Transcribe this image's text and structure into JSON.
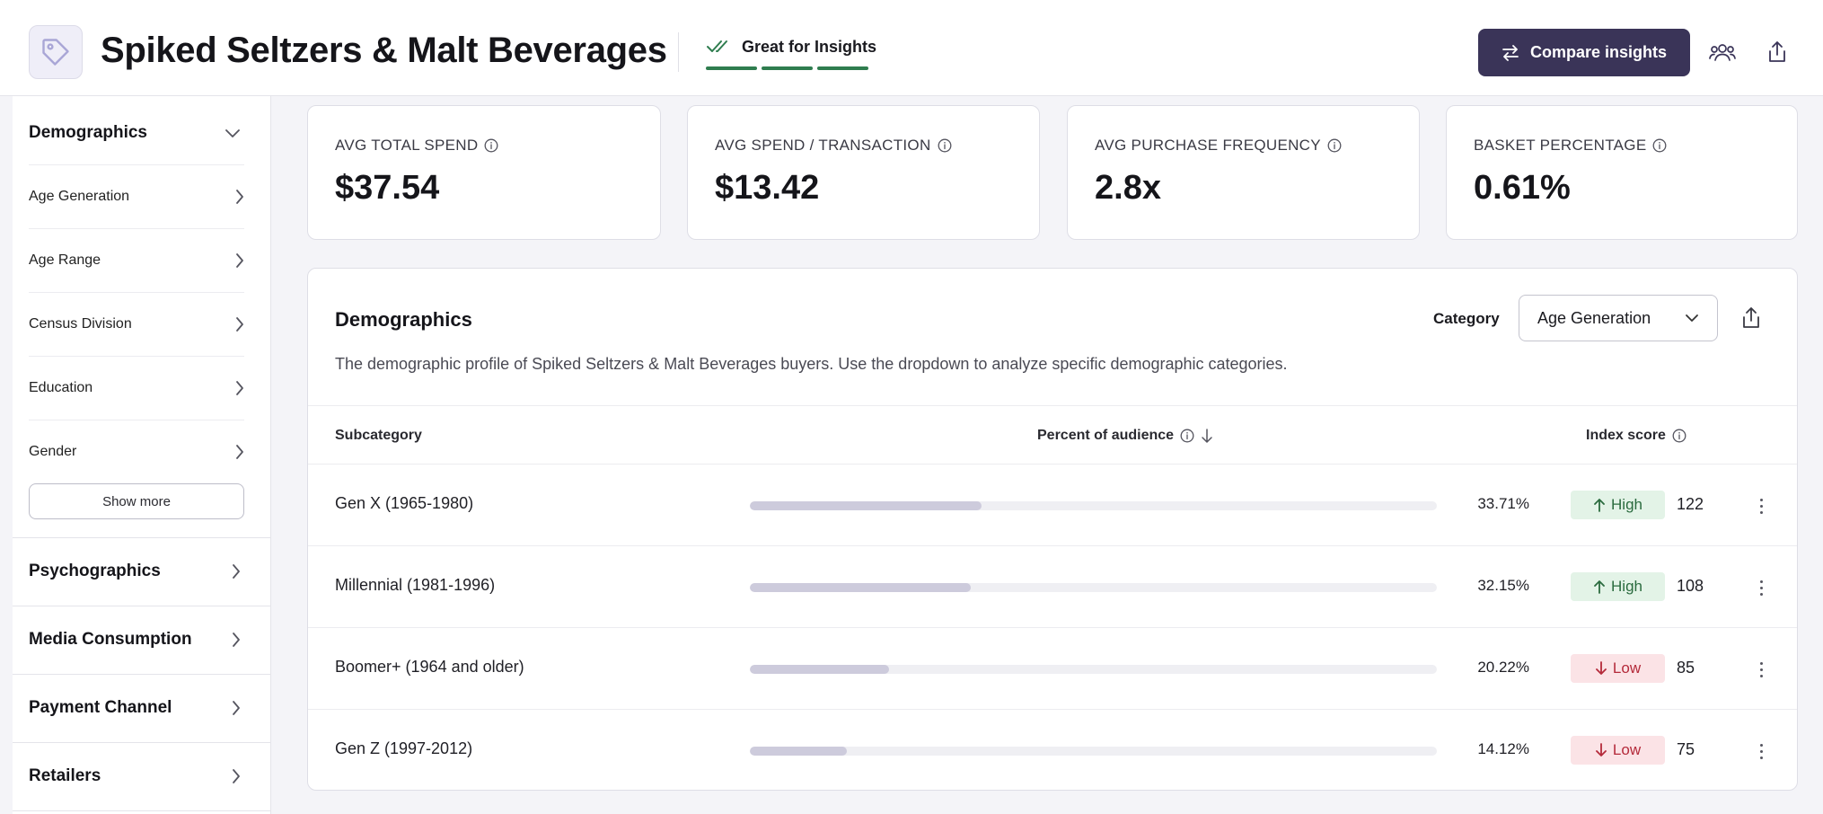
{
  "header": {
    "title": "Spiked Seltzers & Malt Beverages",
    "insight_label": "Great for Insights",
    "compare_button": "Compare insights",
    "icons": [
      "tag-icon",
      "check-double-icon",
      "swap-icon",
      "users-icon",
      "share-icon"
    ]
  },
  "sidebar": {
    "sections": [
      {
        "label": "Demographics",
        "expanded": true
      },
      {
        "label": "Psychographics"
      },
      {
        "label": "Media Consumption"
      },
      {
        "label": "Payment Channel"
      },
      {
        "label": "Retailers"
      }
    ],
    "demographic_items": [
      "Age Generation",
      "Age Range",
      "Census Division",
      "Education",
      "Gender"
    ],
    "show_more": "Show more"
  },
  "metrics": [
    {
      "label": "AVG TOTAL SPEND",
      "value": "$37.54"
    },
    {
      "label": "AVG SPEND / TRANSACTION",
      "value": "$13.42"
    },
    {
      "label": "AVG PURCHASE FREQUENCY",
      "value": "2.8x"
    },
    {
      "label": "BASKET PERCENTAGE",
      "value": "0.61%"
    }
  ],
  "panel": {
    "title": "Demographics",
    "description": "The demographic profile of Spiked Seltzers & Malt Beverages buyers. Use the dropdown to analyze specific demographic categories.",
    "category_label": "Category",
    "category_value": "Age Generation",
    "columns": {
      "subcategory": "Subcategory",
      "percent": "Percent of audience",
      "index": "Index score"
    },
    "rows": [
      {
        "name": "Gen X (1965-1980)",
        "percent": "33.71%",
        "fill": 0.3371,
        "level": "High",
        "score": "122"
      },
      {
        "name": "Millennial (1981-1996)",
        "percent": "32.15%",
        "fill": 0.3215,
        "level": "High",
        "score": "108"
      },
      {
        "name": "Boomer+ (1964 and older)",
        "percent": "20.22%",
        "fill": 0.2022,
        "level": "Low",
        "score": "85"
      },
      {
        "name": "Gen Z (1997-2012)",
        "percent": "14.12%",
        "fill": 0.1412,
        "level": "Low",
        "score": "75"
      }
    ]
  },
  "colors": {
    "accent": "#3a3458",
    "insight_green": "#2f7d4f",
    "high_bg": "#e3f3e7",
    "low_bg": "#fbe3e6"
  }
}
